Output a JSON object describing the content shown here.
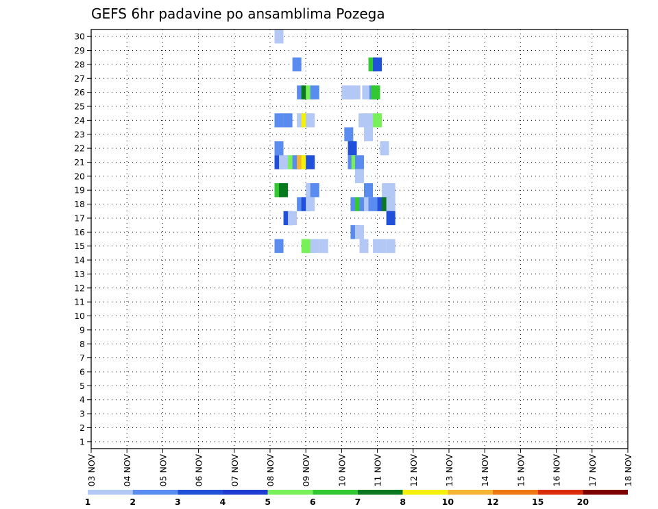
{
  "chart_data": {
    "type": "heatmap",
    "title": "GEFS 6hr padavine po ansamblima Pozega",
    "xlabel": "",
    "ylabel": "",
    "x_ticks": [
      "03 NOV",
      "04 NOV",
      "05 NOV",
      "06 NOV",
      "07 NOV",
      "08 NOV",
      "09 NOV",
      "10 NOV",
      "11 NOV",
      "12 NOV",
      "13 NOV",
      "14 NOV",
      "15 NOV",
      "16 NOV",
      "17 NOV",
      "18 NOV"
    ],
    "y_ticks": [
      "1",
      "2",
      "3",
      "4",
      "5",
      "6",
      "7",
      "8",
      "9",
      "10",
      "11",
      "12",
      "13",
      "14",
      "15",
      "16",
      "17",
      "18",
      "19",
      "20",
      "21",
      "22",
      "23",
      "24",
      "25",
      "26",
      "27",
      "28",
      "29",
      "30"
    ],
    "ylim": [
      0,
      30
    ],
    "grid": true,
    "legend": {
      "placement": "bottom",
      "labels": [
        "1",
        "2",
        "3",
        "4",
        "5",
        "6",
        "7",
        "8",
        "10",
        "12",
        "15",
        "20"
      ],
      "colors": [
        "#b4c8f5",
        "#5a8cf0",
        "#2050d8",
        "#1e3cd2",
        "#78f05a",
        "#32c832",
        "#0a781e",
        "#f5f00a",
        "#f5b432",
        "#f07814",
        "#dc2d0a",
        "#7d0000"
      ]
    },
    "cells_note": "",
    "cells": [
      [
        30,
        5.25,
        0
      ],
      [
        28,
        5.75,
        1
      ],
      [
        28,
        7.875,
        5
      ],
      [
        28,
        8,
        2
      ],
      [
        26,
        5.875,
        1
      ],
      [
        26,
        6.0,
        6
      ],
      [
        26,
        6.125,
        4
      ],
      [
        26,
        6.25,
        1
      ],
      [
        26,
        7.125,
        0
      ],
      [
        26,
        7.25,
        0
      ],
      [
        26,
        7.875,
        0
      ],
      [
        26,
        7.25,
        0
      ],
      [
        26,
        7.4,
        0
      ],
      [
        26,
        7.7,
        0
      ],
      [
        26,
        7.9,
        1
      ],
      [
        26,
        7.95,
        5
      ],
      [
        24,
        5.25,
        1
      ],
      [
        24,
        5.5,
        1
      ],
      [
        24,
        5.875,
        0
      ],
      [
        24,
        6.0,
        7
      ],
      [
        24,
        6.125,
        0
      ],
      [
        24,
        7.6,
        0
      ],
      [
        24,
        7.75,
        0
      ],
      [
        24,
        8.0,
        4
      ],
      [
        23,
        7.2,
        1
      ],
      [
        23,
        7.75,
        0
      ],
      [
        22,
        5.25,
        1
      ],
      [
        22,
        7.3,
        2
      ],
      [
        22,
        8.2,
        0
      ],
      [
        21,
        5.25,
        2
      ],
      [
        21,
        5.375,
        0
      ],
      [
        21,
        5.5,
        0
      ],
      [
        21,
        5.625,
        4
      ],
      [
        21,
        5.75,
        1
      ],
      [
        21,
        5.875,
        8
      ],
      [
        21,
        6.0,
        7
      ],
      [
        21,
        6.125,
        2
      ],
      [
        21,
        7.3,
        1
      ],
      [
        21,
        7.4,
        4
      ],
      [
        21,
        7.5,
        1
      ],
      [
        20,
        7.5,
        0
      ],
      [
        19,
        5.25,
        5
      ],
      [
        19,
        5.375,
        6
      ],
      [
        19,
        6.125,
        0
      ],
      [
        19,
        6.25,
        1
      ],
      [
        19,
        7.75,
        1
      ],
      [
        19,
        8.25,
        0
      ],
      [
        19,
        8.375,
        0
      ],
      [
        18,
        5.875,
        1
      ],
      [
        18,
        6.0,
        2
      ],
      [
        18,
        6.125,
        0
      ],
      [
        18,
        7.375,
        1
      ],
      [
        18,
        7.5,
        5
      ],
      [
        18,
        7.625,
        1
      ],
      [
        18,
        7.75,
        0
      ],
      [
        18,
        7.875,
        1
      ],
      [
        18,
        8.0,
        1
      ],
      [
        18,
        8.125,
        2
      ],
      [
        18,
        8.25,
        6
      ],
      [
        18,
        8.375,
        0
      ],
      [
        17,
        5.5,
        2
      ],
      [
        17,
        5.625,
        0
      ],
      [
        17,
        8.375,
        2
      ],
      [
        16,
        7.375,
        1
      ],
      [
        16,
        7.5,
        0
      ],
      [
        15,
        5.25,
        1
      ],
      [
        15,
        6.0,
        4
      ],
      [
        15,
        6.125,
        4
      ],
      [
        15,
        6.25,
        0
      ],
      [
        15,
        6.5,
        0
      ],
      [
        15,
        7.625,
        0
      ],
      [
        15,
        8.0,
        0
      ],
      [
        15,
        8.125,
        0
      ],
      [
        15,
        8.375,
        0
      ]
    ]
  }
}
